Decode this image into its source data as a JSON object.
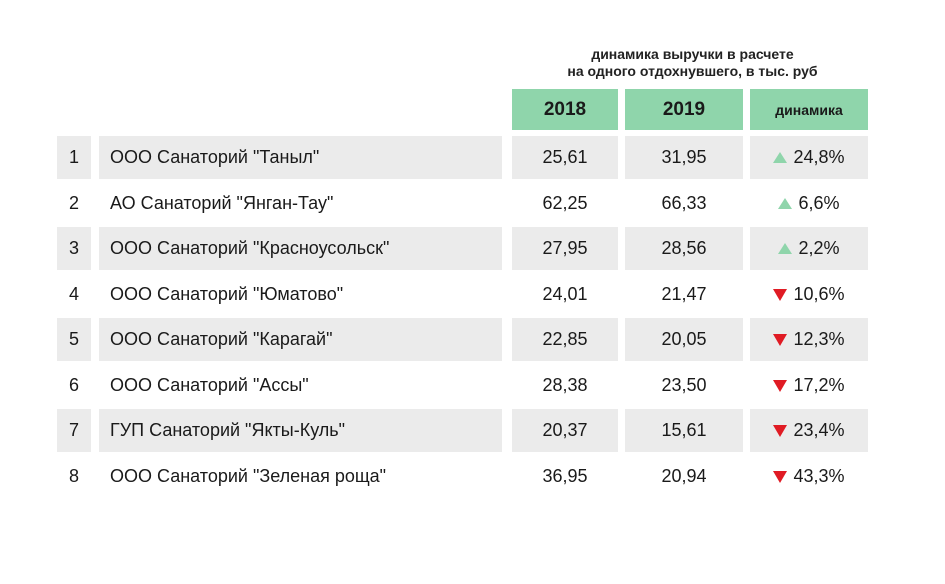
{
  "chart_data": {
    "type": "table",
    "subtitle": [
      "динамика выручки в расчете",
      "на одного отдохнувшего, в тыс. руб"
    ],
    "columns": [
      "2018",
      "2019",
      "динамика"
    ],
    "colors": {
      "header": "#8fd5ab",
      "up": "#8fd5ab",
      "down": "#e01b24",
      "row_shade": "#ebebeb"
    },
    "rows": [
      {
        "num": "1",
        "name": "ООО Санаторий \"Таныл\"",
        "y2018": "25,61",
        "y2019": "31,95",
        "direction": "up",
        "change": "24,8%"
      },
      {
        "num": "2",
        "name": "АО Санаторий \"Янган-Тау\"",
        "y2018": "62,25",
        "y2019": "66,33",
        "direction": "up",
        "change": "6,6%"
      },
      {
        "num": "3",
        "name": "ООО Санаторий \"Красноусольск\"",
        "y2018": "27,95",
        "y2019": "28,56",
        "direction": "up",
        "change": "2,2%"
      },
      {
        "num": "4",
        "name": "ООО Санаторий \"Юматово\"",
        "y2018": "24,01",
        "y2019": "21,47",
        "direction": "down",
        "change": "10,6%"
      },
      {
        "num": "5",
        "name": "ООО Санаторий \"Карагай\"",
        "y2018": "22,85",
        "y2019": "20,05",
        "direction": "down",
        "change": "12,3%"
      },
      {
        "num": "6",
        "name": "ООО Санаторий \"Ассы\"",
        "y2018": "28,38",
        "y2019": "23,50",
        "direction": "down",
        "change": "17,2%"
      },
      {
        "num": "7",
        "name": "ГУП Санаторий \"Якты-Куль\"",
        "y2018": "20,37",
        "y2019": "15,61",
        "direction": "down",
        "change": "23,4%"
      },
      {
        "num": "8",
        "name": "ООО Санаторий \"Зеленая роща\"",
        "y2018": "36,95",
        "y2019": "20,94",
        "direction": "down",
        "change": "43,3%"
      }
    ]
  }
}
